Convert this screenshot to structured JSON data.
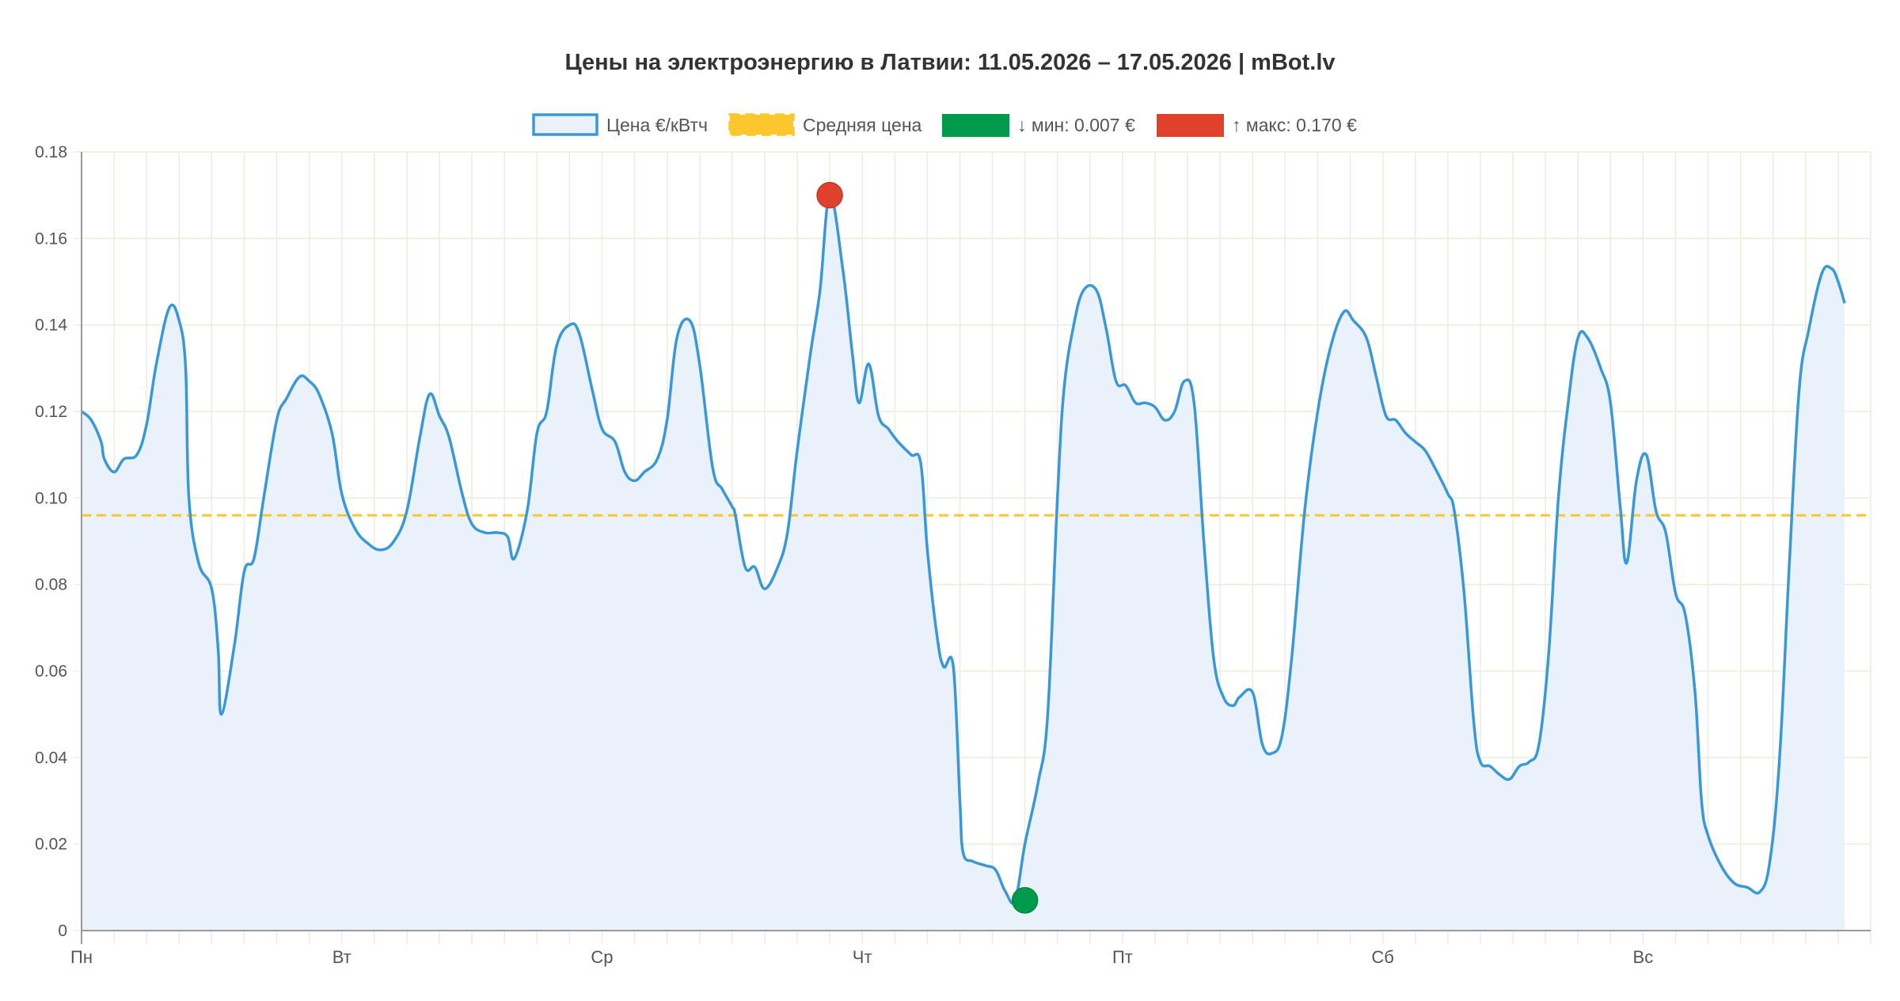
{
  "chart_data": {
    "type": "line",
    "title": "Цены на электроэнергию в Латвии: 11.05.2026 – 17.05.2026 | mBot.lv",
    "xlabel": "",
    "ylabel": "",
    "ylim": [
      0,
      0.18
    ],
    "yticks": [
      "0",
      "0.02",
      "0.04",
      "0.06",
      "0.08",
      "0.10",
      "0.12",
      "0.14",
      "0.16",
      "0.18"
    ],
    "ytick_values": [
      0,
      0.02,
      0.04,
      0.06,
      0.08,
      0.1,
      0.12,
      0.14,
      0.16,
      0.18
    ],
    "day_labels": [
      "Пн",
      "Вт",
      "Ср",
      "Чт",
      "Пт",
      "Сб",
      "Вс"
    ],
    "grid": true,
    "legend_position": "top-center",
    "colors": {
      "line": "#3a98d6",
      "fill": "#e9f2fa",
      "average": "#fcc72c",
      "min": "#009b4a",
      "max": "#e0412b",
      "grid": "#ececdf",
      "axis": "#999999",
      "text": "#555555",
      "title": "#333333"
    },
    "legend": [
      {
        "label": "Цена €/кВтч",
        "kind": "outline",
        "color": "#3a98d6"
      },
      {
        "label": "Средняя цена",
        "kind": "dashed",
        "color": "#fcc72c"
      },
      {
        "label": "↓ мин: 0.007 €",
        "kind": "solid",
        "color": "#009b4a"
      },
      {
        "label": "↑ макс: 0.170 €",
        "kind": "solid",
        "color": "#e0412b"
      }
    ],
    "average": 0.096,
    "min_point": {
      "hour": 29,
      "value": 0.007
    },
    "max_point": {
      "hour": 23,
      "value": 0.17
    },
    "series": [
      {
        "name": "Цена €/кВтч",
        "values": [
          [
            0,
            0.12
          ],
          [
            0.3,
            0.118
          ],
          [
            0.6,
            0.113
          ],
          [
            0.7,
            0.109
          ],
          [
            1,
            0.106
          ],
          [
            1.3,
            0.109
          ],
          [
            1.7,
            0.11
          ],
          [
            2,
            0.117
          ],
          [
            2.3,
            0.131
          ],
          [
            2.7,
            0.144
          ],
          [
            3,
            0.141
          ],
          [
            3.2,
            0.13
          ],
          [
            3.3,
            0.1
          ],
          [
            3.6,
            0.085
          ],
          [
            4,
            0.079
          ],
          [
            4.2,
            0.065
          ],
          [
            4.3,
            0.05
          ],
          [
            4.7,
            0.066
          ],
          [
            5,
            0.083
          ],
          [
            5.3,
            0.086
          ],
          [
            5.6,
            0.1
          ],
          [
            6,
            0.118
          ],
          [
            6.3,
            0.123
          ],
          [
            6.7,
            0.128
          ],
          [
            7,
            0.127
          ],
          [
            7.3,
            0.124
          ],
          [
            7.7,
            0.115
          ],
          [
            8,
            0.101
          ],
          [
            8.4,
            0.093
          ],
          [
            8.8,
            0.0895
          ],
          [
            9.2,
            0.088
          ],
          [
            9.6,
            0.09
          ],
          [
            10,
            0.097
          ],
          [
            10.4,
            0.114
          ],
          [
            10.7,
            0.124
          ],
          [
            11,
            0.119
          ],
          [
            11.3,
            0.114
          ],
          [
            11.7,
            0.101
          ],
          [
            12,
            0.094
          ],
          [
            12.4,
            0.092
          ],
          [
            12.8,
            0.092
          ],
          [
            13.1,
            0.091
          ],
          [
            13.3,
            0.086
          ],
          [
            13.7,
            0.097
          ],
          [
            14,
            0.115
          ],
          [
            14.3,
            0.12
          ],
          [
            14.6,
            0.135
          ],
          [
            15,
            0.14
          ],
          [
            15.3,
            0.138
          ],
          [
            15.7,
            0.125
          ],
          [
            16,
            0.116
          ],
          [
            16.4,
            0.113
          ],
          [
            16.7,
            0.106
          ],
          [
            17,
            0.104
          ],
          [
            17.3,
            0.106
          ],
          [
            17.7,
            0.109
          ],
          [
            18,
            0.118
          ],
          [
            18.3,
            0.137
          ],
          [
            18.7,
            0.141
          ],
          [
            19,
            0.131
          ],
          [
            19.4,
            0.107
          ],
          [
            19.7,
            0.102
          ],
          [
            20,
            0.098
          ],
          [
            20.1,
            0.096
          ],
          [
            20.4,
            0.084
          ],
          [
            20.7,
            0.084
          ],
          [
            21,
            0.079
          ],
          [
            21.4,
            0.084
          ],
          [
            21.7,
            0.092
          ],
          [
            22,
            0.111
          ],
          [
            22.4,
            0.133
          ],
          [
            22.7,
            0.148
          ],
          [
            23,
            0.17
          ],
          [
            23.4,
            0.153
          ],
          [
            23.7,
            0.133
          ],
          [
            23.9,
            0.122
          ],
          [
            24.2,
            0.131
          ],
          [
            24.5,
            0.119
          ],
          [
            24.8,
            0.116
          ],
          [
            25.1,
            0.113
          ],
          [
            25.5,
            0.11
          ],
          [
            25.8,
            0.108
          ],
          [
            26,
            0.088
          ],
          [
            26.3,
            0.068
          ],
          [
            26.5,
            0.061
          ],
          [
            26.8,
            0.061
          ],
          [
            27,
            0.03
          ],
          [
            27.1,
            0.018
          ],
          [
            27.4,
            0.016
          ],
          [
            27.8,
            0.015
          ],
          [
            28.1,
            0.014
          ],
          [
            28.4,
            0.009
          ],
          [
            28.7,
            0.007
          ],
          [
            29,
            0.02
          ],
          [
            29.4,
            0.034
          ],
          [
            29.7,
            0.05
          ],
          [
            30,
            0.1
          ],
          [
            30.2,
            0.125
          ],
          [
            30.5,
            0.14
          ],
          [
            30.8,
            0.148
          ],
          [
            31.2,
            0.148
          ],
          [
            31.5,
            0.139
          ],
          [
            31.8,
            0.127
          ],
          [
            32.1,
            0.126
          ],
          [
            32.4,
            0.122
          ],
          [
            32.7,
            0.122
          ],
          [
            33,
            0.121
          ],
          [
            33.3,
            0.118
          ],
          [
            33.6,
            0.12
          ],
          [
            33.9,
            0.127
          ],
          [
            34.2,
            0.122
          ],
          [
            34.5,
            0.09
          ],
          [
            34.8,
            0.063
          ],
          [
            35.1,
            0.054
          ],
          [
            35.4,
            0.052
          ],
          [
            35.6,
            0.054
          ],
          [
            36,
            0.055
          ],
          [
            36.3,
            0.043
          ],
          [
            36.6,
            0.041
          ],
          [
            36.9,
            0.045
          ],
          [
            37.2,
            0.063
          ],
          [
            37.6,
            0.097
          ],
          [
            38,
            0.12
          ],
          [
            38.4,
            0.135
          ],
          [
            38.8,
            0.143
          ],
          [
            39.1,
            0.141
          ],
          [
            39.5,
            0.137
          ],
          [
            39.8,
            0.128
          ],
          [
            40.1,
            0.119
          ],
          [
            40.4,
            0.118
          ],
          [
            40.7,
            0.115
          ],
          [
            41,
            0.113
          ],
          [
            41.3,
            0.111
          ],
          [
            41.6,
            0.107
          ],
          [
            42,
            0.101
          ],
          [
            42.2,
            0.097
          ],
          [
            42.5,
            0.078
          ],
          [
            42.8,
            0.048
          ],
          [
            43,
            0.039
          ],
          [
            43.3,
            0.038
          ],
          [
            43.6,
            0.036
          ],
          [
            43.9,
            0.035
          ],
          [
            44.2,
            0.038
          ],
          [
            44.5,
            0.039
          ],
          [
            44.8,
            0.043
          ],
          [
            45.1,
            0.064
          ],
          [
            45.4,
            0.1
          ],
          [
            45.7,
            0.122
          ],
          [
            46,
            0.137
          ],
          [
            46.3,
            0.137
          ],
          [
            46.7,
            0.13
          ],
          [
            47,
            0.122
          ],
          [
            47.3,
            0.098
          ],
          [
            47.5,
            0.085
          ],
          [
            47.8,
            0.104
          ],
          [
            48.1,
            0.11
          ],
          [
            48.4,
            0.097
          ],
          [
            48.7,
            0.092
          ],
          [
            49,
            0.078
          ],
          [
            49.3,
            0.073
          ],
          [
            49.6,
            0.055
          ],
          [
            49.8,
            0.03
          ],
          [
            50,
            0.022
          ],
          [
            50.4,
            0.015
          ],
          [
            50.8,
            0.011
          ],
          [
            51.2,
            0.01
          ],
          [
            51.6,
            0.009
          ],
          [
            51.9,
            0.016
          ],
          [
            52.2,
            0.04
          ],
          [
            52.5,
            0.085
          ],
          [
            52.8,
            0.125
          ],
          [
            53.1,
            0.139
          ],
          [
            53.5,
            0.152
          ],
          [
            53.8,
            0.153
          ],
          [
            54,
            0.15
          ],
          [
            54.2,
            0.145
          ]
        ]
      }
    ]
  }
}
